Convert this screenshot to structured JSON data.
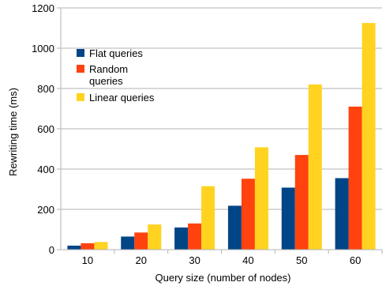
{
  "chart_data": {
    "type": "bar",
    "title": "",
    "xlabel": "Query size (number of nodes)",
    "ylabel": "Rewriting time (ms)",
    "ylim": [
      0,
      1200
    ],
    "yticks": [
      "0",
      "200",
      "400",
      "600",
      "800",
      "1000",
      "1200"
    ],
    "grid": "horizontal",
    "legend_position": "left",
    "categories": [
      "10",
      "20",
      "30",
      "40",
      "50",
      "60"
    ],
    "series": [
      {
        "name": "Flat queries",
        "color": "#004586",
        "values": [
          20,
          65,
          110,
          218,
          308,
          355
        ]
      },
      {
        "name": "Random queries",
        "color": "#ff420e",
        "values": [
          32,
          85,
          130,
          352,
          470,
          710
        ]
      },
      {
        "name": "Linear queries",
        "color": "#ffd320",
        "values": [
          38,
          125,
          315,
          508,
          820,
          1125
        ]
      }
    ]
  }
}
